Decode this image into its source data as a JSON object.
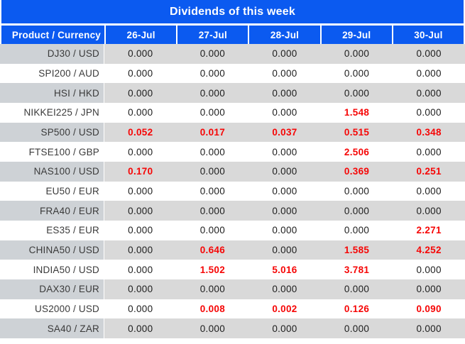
{
  "title_bar": {
    "title": "Dividends of this week"
  },
  "chart_data": {
    "type": "table",
    "title": "Dividends of this week",
    "columns": [
      "Product / Currency",
      "26-Jul",
      "27-Jul",
      "28-Jul",
      "29-Jul",
      "30-Jul"
    ],
    "zero_display": "0.000",
    "highlight_rule": "non-zero dividend values are shown in bold red",
    "rows": [
      {
        "product": "DJ30 / USD",
        "values": [
          "0.000",
          "0.000",
          "0.000",
          "0.000",
          "0.000"
        ]
      },
      {
        "product": "SPI200 / AUD",
        "values": [
          "0.000",
          "0.000",
          "0.000",
          "0.000",
          "0.000"
        ]
      },
      {
        "product": "HSI / HKD",
        "values": [
          "0.000",
          "0.000",
          "0.000",
          "0.000",
          "0.000"
        ]
      },
      {
        "product": "NIKKEI225 / JPN",
        "values": [
          "0.000",
          "0.000",
          "0.000",
          "1.548",
          "0.000"
        ]
      },
      {
        "product": "SP500 / USD",
        "values": [
          "0.052",
          "0.017",
          "0.037",
          "0.515",
          "0.348"
        ]
      },
      {
        "product": "FTSE100 / GBP",
        "values": [
          "0.000",
          "0.000",
          "0.000",
          "2.506",
          "0.000"
        ]
      },
      {
        "product": "NAS100 / USD",
        "values": [
          "0.170",
          "0.000",
          "0.000",
          "0.369",
          "0.251"
        ]
      },
      {
        "product": "EU50 / EUR",
        "values": [
          "0.000",
          "0.000",
          "0.000",
          "0.000",
          "0.000"
        ]
      },
      {
        "product": "FRA40 / EUR",
        "values": [
          "0.000",
          "0.000",
          "0.000",
          "0.000",
          "0.000"
        ]
      },
      {
        "product": "ES35 / EUR",
        "values": [
          "0.000",
          "0.000",
          "0.000",
          "0.000",
          "2.271"
        ]
      },
      {
        "product": "CHINA50 / USD",
        "values": [
          "0.000",
          "0.646",
          "0.000",
          "1.585",
          "4.252"
        ]
      },
      {
        "product": "INDIA50 / USD",
        "values": [
          "0.000",
          "1.502",
          "5.016",
          "3.781",
          "0.000"
        ]
      },
      {
        "product": "DAX30 / EUR",
        "values": [
          "0.000",
          "0.000",
          "0.000",
          "0.000",
          "0.000"
        ]
      },
      {
        "product": "US2000 / USD",
        "values": [
          "0.000",
          "0.008",
          "0.002",
          "0.126",
          "0.090"
        ]
      },
      {
        "product": "SA40 / ZAR",
        "values": [
          "0.000",
          "0.000",
          "0.000",
          "0.000",
          "0.000"
        ]
      }
    ]
  },
  "theme": {
    "header_blue": "#0b5af0",
    "highlight_red": "#f60606",
    "row_gray": "#d9d9d9",
    "label_gray": "#ced2d6",
    "text_dark": "#1c1c1c",
    "label_text": "#3a3a3a"
  }
}
